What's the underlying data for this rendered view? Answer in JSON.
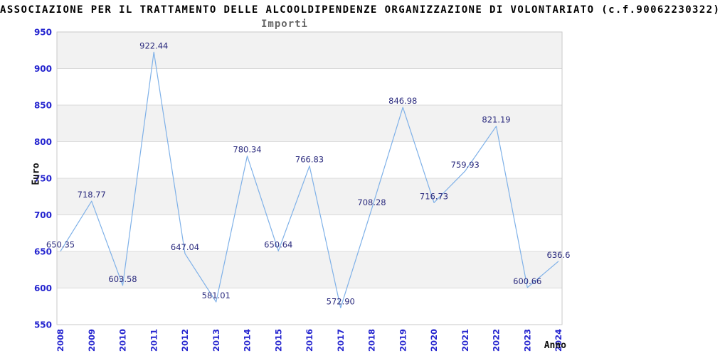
{
  "header": {
    "title": "ASSOCIAZIONE PER IL TRATTAMENTO DELLE ALCOOLDIPENDENZE ORGANIZZAZIONE DI VOLONTARIATO (c.f.90062230322)",
    "subtitle": "Importi"
  },
  "chart_data": {
    "type": "line",
    "title": "Importi",
    "xlabel": "Anno",
    "ylabel": "Euro",
    "categories": [
      "2008",
      "2009",
      "2010",
      "2011",
      "2012",
      "2013",
      "2014",
      "2015",
      "2016",
      "2017",
      "2018",
      "2019",
      "2020",
      "2021",
      "2022",
      "2023",
      "2024"
    ],
    "values": [
      650.35,
      718.77,
      603.58,
      922.44,
      647.04,
      581.01,
      780.34,
      650.64,
      766.83,
      572.9,
      708.28,
      846.98,
      716.73,
      759.93,
      821.19,
      600.66,
      636.6
    ],
    "point_labels": [
      "650.35",
      "718.77",
      "603.58",
      "922.44",
      "647.04",
      "581.01",
      "780.34",
      "650.64",
      "766.83",
      "572.90",
      "708.28",
      "846.98",
      "716.73",
      "759.93",
      "821.19",
      "600.66",
      "636.6"
    ],
    "ylim": [
      550,
      950
    ],
    "ytick_step": 50,
    "grid": true,
    "alternating_bands": true,
    "legend_position": "none"
  },
  "colors": {
    "line": "#7fb1e8",
    "point_label": "#2b2b7e",
    "tick_label": "#2424cf",
    "band": "#f2f2f2",
    "gridline": "#d9d9d9",
    "plot_border": "#c9c9c9",
    "background": "#ffffff",
    "title": "#000000",
    "subtitle": "#666666"
  }
}
